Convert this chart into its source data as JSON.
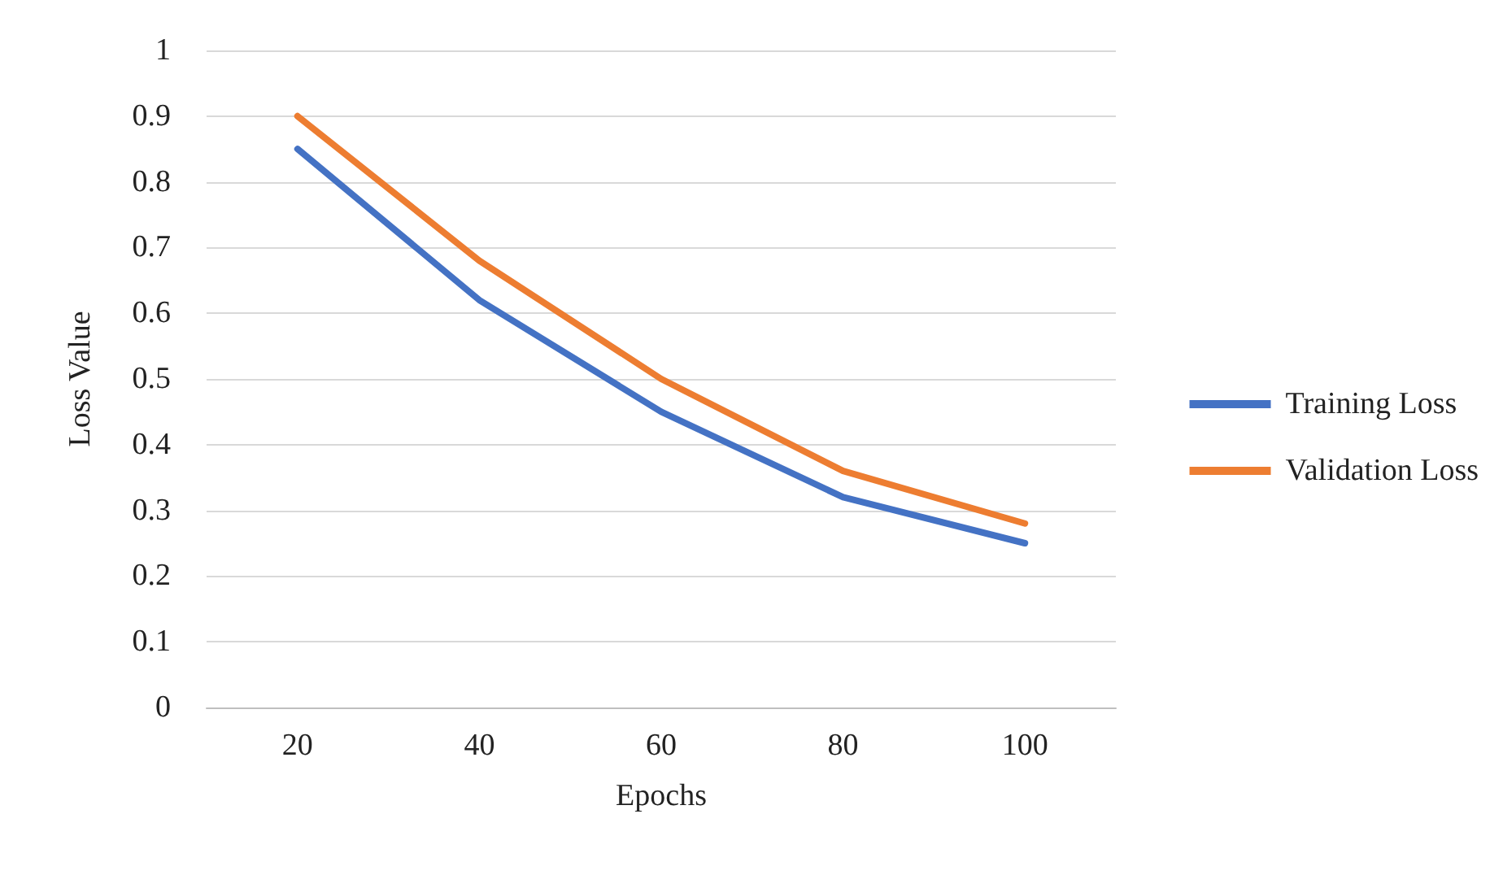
{
  "chart_data": {
    "type": "line",
    "xlabel": "Epochs",
    "ylabel": "Loss Value",
    "categories": [
      "20",
      "40",
      "60",
      "80",
      "100"
    ],
    "series": [
      {
        "name": "Training Loss",
        "color": "#4472c4",
        "values": [
          0.85,
          0.62,
          0.45,
          0.32,
          0.25
        ]
      },
      {
        "name": "Validation Loss",
        "color": "#ed7d31",
        "values": [
          0.9,
          0.68,
          0.5,
          0.36,
          0.28
        ]
      }
    ],
    "ylim": [
      0,
      1
    ],
    "yticks": [
      0,
      0.1,
      0.2,
      0.3,
      0.4,
      0.5,
      0.6,
      0.7,
      0.8,
      0.9,
      1
    ],
    "grid": "y",
    "legend": "right",
    "marker": "none",
    "line_style": "solid"
  }
}
